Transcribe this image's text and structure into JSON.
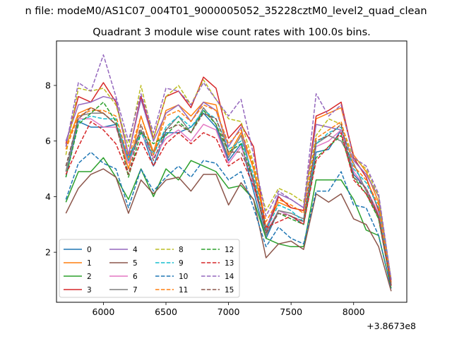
{
  "page": {
    "suptitle": "n file: modeM0/AS1C07_004T01_9000005052_35228cztM0_level2_quad_clean",
    "title": "Quadrant 3 module wise count rates with 100.0s bins."
  },
  "chart_data": {
    "type": "line",
    "title": "Quadrant 3 module wise count rates with 100.0s bins.",
    "xlabel": "",
    "ylabel": "",
    "x_offset_label": "+3.8673e8",
    "x": [
      5700,
      5800,
      5900,
      6000,
      6100,
      6200,
      6300,
      6400,
      6500,
      6600,
      6700,
      6800,
      6900,
      7000,
      7100,
      7200,
      7300,
      7400,
      7500,
      7600,
      7700,
      7800,
      7900,
      8000,
      8100,
      8200,
      8300
    ],
    "xlim": [
      5625,
      8425
    ],
    "ylim": [
      0.2,
      9.6
    ],
    "xticks": [
      6000,
      6500,
      7000,
      7500,
      8000
    ],
    "yticks": [
      2,
      4,
      6,
      8
    ],
    "grid": false,
    "legend": "lower-left",
    "series": [
      {
        "name": "0",
        "color": "#1f77b4",
        "dashed": false,
        "values": [
          4.7,
          6.7,
          6.5,
          6.5,
          6.6,
          5.4,
          6.4,
          5.1,
          6.3,
          6.3,
          6.5,
          7.0,
          6.5,
          5.3,
          5.9,
          4.2,
          2.5,
          3.5,
          3.3,
          3.0,
          5.6,
          5.7,
          6.4,
          4.8,
          4.3,
          3.3,
          0.8
        ]
      },
      {
        "name": "1",
        "color": "#ff7f0e",
        "dashed": false,
        "values": [
          5.8,
          7.0,
          7.2,
          7.0,
          6.6,
          5.0,
          6.9,
          5.6,
          7.1,
          7.3,
          6.9,
          7.4,
          7.3,
          5.5,
          6.3,
          5.0,
          2.9,
          3.8,
          3.6,
          3.5,
          6.8,
          7.0,
          7.2,
          5.5,
          4.9,
          3.8,
          1.0
        ]
      },
      {
        "name": "2",
        "color": "#2ca02c",
        "dashed": false,
        "values": [
          3.8,
          4.9,
          4.9,
          5.4,
          4.7,
          3.9,
          5.0,
          4.0,
          5.0,
          4.6,
          5.3,
          5.1,
          4.9,
          4.3,
          4.4,
          3.9,
          2.5,
          2.3,
          2.2,
          2.2,
          4.6,
          4.6,
          4.6,
          3.9,
          2.8,
          2.6,
          0.7
        ]
      },
      {
        "name": "3",
        "color": "#d62728",
        "dashed": false,
        "values": [
          5.9,
          7.6,
          7.4,
          8.1,
          7.4,
          5.5,
          7.6,
          6.1,
          7.6,
          7.8,
          7.2,
          8.3,
          7.9,
          6.1,
          6.6,
          5.8,
          2.7,
          4.0,
          3.6,
          3.5,
          6.9,
          7.1,
          7.4,
          5.4,
          4.7,
          3.5,
          0.9
        ]
      },
      {
        "name": "4",
        "color": "#9467bd",
        "dashed": false,
        "values": [
          6.0,
          7.3,
          7.4,
          7.6,
          7.5,
          5.5,
          7.5,
          6.0,
          7.0,
          7.3,
          6.7,
          7.4,
          7.1,
          5.8,
          6.5,
          4.4,
          2.8,
          4.1,
          3.9,
          3.6,
          6.6,
          6.5,
          6.4,
          5.3,
          4.8,
          4.0,
          1.0
        ]
      },
      {
        "name": "5",
        "color": "#8c564b",
        "dashed": false,
        "values": [
          3.4,
          4.3,
          4.8,
          5.0,
          4.7,
          3.4,
          4.6,
          4.1,
          4.6,
          4.7,
          4.2,
          4.8,
          4.8,
          3.7,
          4.5,
          3.9,
          1.8,
          2.3,
          2.4,
          2.1,
          4.1,
          3.8,
          4.1,
          3.2,
          3.0,
          2.2,
          0.6
        ]
      },
      {
        "name": "6",
        "color": "#e377c2",
        "dashed": false,
        "values": [
          4.9,
          6.8,
          6.8,
          6.5,
          6.5,
          5.2,
          6.3,
          5.4,
          6.1,
          6.4,
          6.0,
          6.6,
          6.4,
          5.2,
          5.8,
          4.6,
          2.7,
          3.5,
          3.3,
          3.1,
          5.8,
          6.0,
          6.4,
          4.9,
          4.3,
          3.4,
          0.9
        ]
      },
      {
        "name": "7",
        "color": "#7f7f7f",
        "dashed": false,
        "values": [
          4.9,
          6.9,
          7.0,
          7.0,
          6.6,
          5.3,
          6.4,
          5.6,
          6.4,
          6.9,
          6.3,
          7.2,
          6.6,
          5.4,
          6.2,
          4.6,
          2.6,
          3.5,
          3.4,
          3.2,
          5.9,
          6.2,
          6.0,
          5.2,
          4.2,
          3.2,
          0.8
        ]
      },
      {
        "name": "8",
        "color": "#bcbd22",
        "dashed": true,
        "values": [
          5.5,
          7.9,
          7.8,
          7.9,
          7.3,
          5.8,
          8.0,
          6.1,
          7.6,
          8.0,
          7.3,
          8.2,
          7.5,
          6.8,
          6.7,
          5.2,
          3.5,
          4.3,
          4.1,
          3.8,
          6.2,
          6.8,
          6.6,
          5.4,
          5.0,
          4.0,
          1.0
        ]
      },
      {
        "name": "9",
        "color": "#17becf",
        "dashed": true,
        "values": [
          5.1,
          6.7,
          6.9,
          6.8,
          6.8,
          5.3,
          6.3,
          5.5,
          6.5,
          6.9,
          6.5,
          7.1,
          6.8,
          5.7,
          6.0,
          4.8,
          2.8,
          3.7,
          3.5,
          3.1,
          5.9,
          6.3,
          6.5,
          5.0,
          4.5,
          3.6,
          0.9
        ]
      },
      {
        "name": "10",
        "color": "#1f77b4",
        "dashed": true,
        "values": [
          3.9,
          5.2,
          5.6,
          5.2,
          5.0,
          3.6,
          5.0,
          4.2,
          4.7,
          5.1,
          4.7,
          5.3,
          5.2,
          4.6,
          4.9,
          3.6,
          2.2,
          2.9,
          2.5,
          2.3,
          4.2,
          4.2,
          4.9,
          3.7,
          3.6,
          2.6,
          0.7
        ]
      },
      {
        "name": "11",
        "color": "#ff7f0e",
        "dashed": true,
        "values": [
          5.7,
          6.9,
          7.1,
          7.1,
          6.9,
          5.4,
          6.9,
          5.5,
          6.9,
          7.1,
          6.7,
          7.3,
          7.1,
          5.9,
          6.4,
          5.1,
          3.1,
          3.9,
          3.7,
          3.4,
          6.1,
          6.4,
          6.7,
          5.1,
          4.6,
          3.7,
          0.9
        ]
      },
      {
        "name": "12",
        "color": "#2ca02c",
        "dashed": true,
        "values": [
          4.7,
          6.6,
          7.0,
          7.4,
          6.7,
          4.7,
          6.3,
          5.9,
          6.2,
          6.7,
          6.3,
          7.1,
          6.6,
          5.6,
          5.9,
          4.6,
          2.7,
          3.4,
          3.2,
          3.0,
          5.4,
          5.8,
          6.2,
          4.7,
          4.1,
          3.2,
          0.8
        ]
      },
      {
        "name": "13",
        "color": "#d62728",
        "dashed": true,
        "values": [
          4.8,
          5.8,
          6.7,
          6.4,
          5.9,
          4.8,
          6.0,
          5.1,
          5.9,
          6.3,
          5.9,
          6.3,
          6.1,
          5.1,
          5.4,
          4.4,
          2.9,
          3.1,
          3.3,
          3.0,
          5.3,
          5.8,
          6.3,
          4.6,
          4.1,
          3.3,
          0.8
        ]
      },
      {
        "name": "14",
        "color": "#9467bd",
        "dashed": true,
        "values": [
          5.8,
          8.1,
          7.8,
          9.1,
          7.6,
          6.0,
          7.7,
          6.3,
          7.9,
          7.8,
          7.3,
          8.1,
          7.5,
          6.9,
          7.5,
          5.5,
          3.3,
          4.2,
          3.9,
          3.6,
          7.7,
          6.9,
          7.3,
          5.4,
          5.1,
          4.1,
          1.0
        ]
      },
      {
        "name": "15",
        "color": "#8c564b",
        "dashed": true,
        "values": [
          5.1,
          6.8,
          7.2,
          7.0,
          6.6,
          4.8,
          6.6,
          5.3,
          6.4,
          6.6,
          6.3,
          7.0,
          6.8,
          5.6,
          5.6,
          4.6,
          2.7,
          3.4,
          3.3,
          3.1,
          6.0,
          6.2,
          6.6,
          4.7,
          4.3,
          3.3,
          0.8
        ]
      }
    ]
  }
}
